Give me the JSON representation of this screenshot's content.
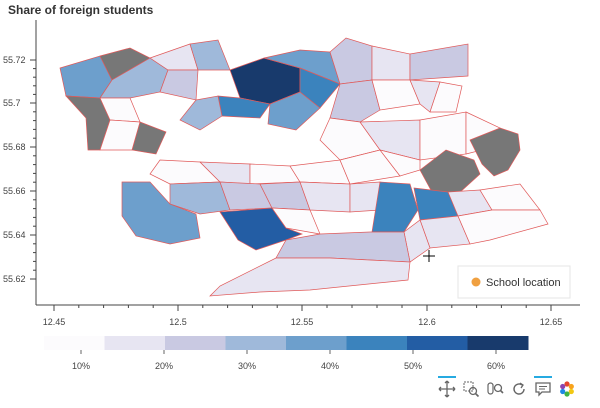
{
  "title": "Share of foreign students",
  "x_ticks": [
    "12.45",
    "12.5",
    "12.55",
    "12.6",
    "12.65"
  ],
  "y_ticks": [
    "55.72",
    "55.7",
    "55.68",
    "55.66",
    "55.64",
    "55.62"
  ],
  "legend_label": "School location",
  "colorbar": {
    "labels": [
      "10%",
      "20%",
      "30%",
      "40%",
      "50%",
      "60%"
    ],
    "colors": [
      "#fcfbfd",
      "#e7e5f2",
      "#c9c9e2",
      "#9fb9da",
      "#6d9fcc",
      "#3b83bd",
      "#235da4",
      "#183a6c"
    ]
  },
  "colors": {
    "missing": "#777777",
    "district_border": "#e05a5a",
    "school_marker": "#f0a040"
  },
  "toolbar": [
    {
      "icon": "pan-icon",
      "active": true
    },
    {
      "icon": "box-zoom-icon",
      "active": false
    },
    {
      "icon": "wheel-zoom-icon",
      "active": false
    },
    {
      "icon": "reset-icon",
      "active": false
    },
    {
      "icon": "hover-icon",
      "active": true
    },
    {
      "icon": "bokeh-logo-icon",
      "active": false
    }
  ]
}
